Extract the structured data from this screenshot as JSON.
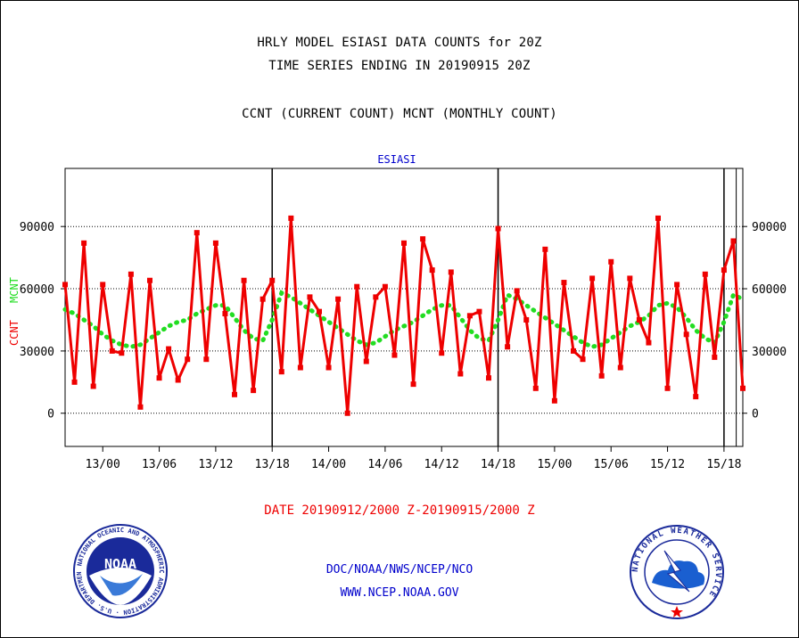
{
  "header": {
    "title_line1": "HRLY MODEL ESIASI DATA COUNTS for 20Z",
    "title_line2": "TIME SERIES ENDING IN 20190915 20Z",
    "legend_line": "CCNT (CURRENT COUNT) MCNT (MONTHLY COUNT)"
  },
  "date_range": "DATE 20190912/2000 Z-20190915/2000 Z",
  "footer": {
    "org": "DOC/NOAA/NWS/NCEP/NCO",
    "url": "WWW.NCEP.NOAA.GOV"
  },
  "logos": {
    "noaa": {
      "center_text": "NOAA",
      "ring_text": "NATIONAL OCEANIC AND ATMOSPHERIC ADMINISTRATION · U.S. DEPARTMENT OF COMMERCE"
    },
    "nws": {
      "ring_text": "NATIONAL WEATHER SERVICE"
    }
  },
  "colors": {
    "ccnt": "#ee0000",
    "mcnt": "#22dd22",
    "title_blue": "#0000cc"
  },
  "chart_data": {
    "type": "line",
    "title": "ESIASI",
    "ylabel_left_1": "CCNT",
    "ylabel_left_2": "MCNT",
    "ylim": [
      -16000,
      118000
    ],
    "y_ticks": [
      0,
      30000,
      60000,
      90000
    ],
    "y_tick_labels": [
      "0",
      "30000",
      "60000",
      "90000"
    ],
    "x_range_hours": [
      0,
      72
    ],
    "x_ticks_hours": [
      4,
      10,
      16,
      22,
      28,
      34,
      40,
      46,
      52,
      58,
      64,
      70
    ],
    "x_tick_labels": [
      "13/00",
      "13/06",
      "13/12",
      "13/18",
      "14/00",
      "14/06",
      "14/12",
      "14/18",
      "15/00",
      "15/06",
      "15/12",
      "15/18"
    ],
    "day_separators_hours": [
      22,
      46,
      70
    ],
    "grid": true,
    "series": [
      {
        "name": "CCNT",
        "values": [
          62000,
          15000,
          82000,
          13000,
          62000,
          30000,
          29000,
          67000,
          3000,
          64000,
          17000,
          31000,
          16000,
          26000,
          87000,
          26000,
          82000,
          48000,
          9000,
          64000,
          11000,
          55000,
          64000,
          20000,
          94000,
          22000,
          56000,
          49000,
          22000,
          55000,
          0,
          61000,
          25000,
          56000,
          61000,
          28000,
          82000,
          14000,
          84000,
          69000,
          29000,
          68000,
          19000,
          47000,
          49000,
          17000,
          89000,
          32000,
          59000,
          45000,
          12000,
          79000,
          6000,
          63000,
          30000,
          26000,
          65000,
          18000,
          73000,
          22000,
          65000,
          45000,
          34000,
          94000,
          12000,
          62000,
          38000,
          8000,
          67000,
          27000,
          69000,
          83000,
          12000
        ]
      },
      {
        "name": "MCNT",
        "values": [
          50000,
          48000,
          45000,
          42000,
          38000,
          35000,
          33000,
          32000,
          33000,
          36000,
          39000,
          42000,
          44000,
          45000,
          48000,
          50000,
          52000,
          52000,
          46000,
          40000,
          36000,
          35000,
          45000,
          58000,
          56000,
          53000,
          50000,
          47000,
          44000,
          41000,
          38000,
          35000,
          33000,
          34000,
          37000,
          40000,
          42000,
          44000,
          47000,
          50000,
          52000,
          52000,
          46000,
          40000,
          36000,
          35000,
          45000,
          57000,
          55000,
          52000,
          49000,
          46000,
          43000,
          40000,
          37000,
          34000,
          32000,
          33000,
          36000,
          39000,
          42000,
          44000,
          47000,
          52000,
          53000,
          51000,
          46000,
          40000,
          36000,
          34000,
          44000,
          57000,
          55000
        ]
      }
    ]
  }
}
